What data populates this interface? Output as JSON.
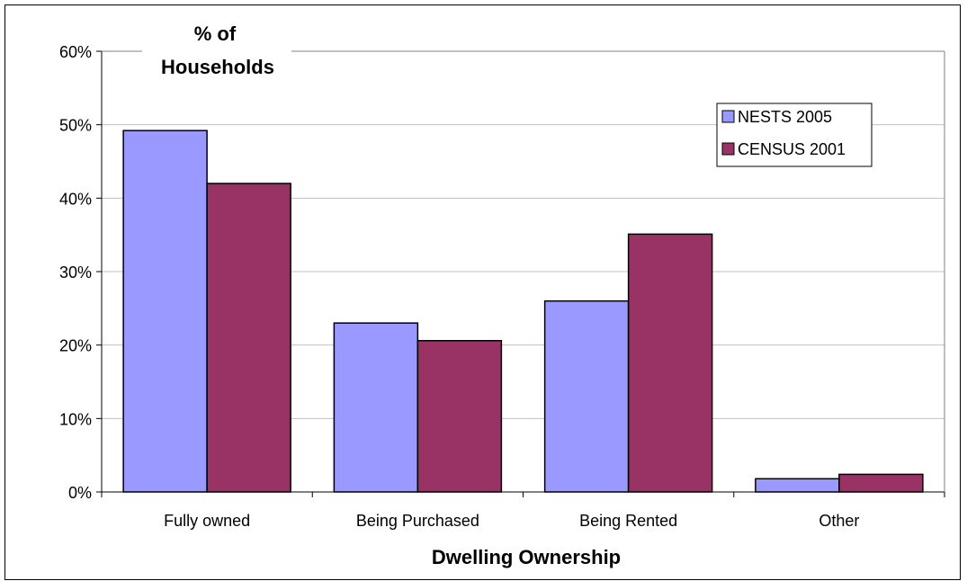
{
  "chart_data": {
    "type": "bar",
    "ylabel": "% of Households",
    "xlabel": "Dwelling Ownership",
    "categories": [
      "Fully owned",
      "Being Purchased",
      "Being Rented",
      "Other"
    ],
    "series": [
      {
        "name": "NESTS 2005",
        "values": [
          49.2,
          23.0,
          26.0,
          1.8
        ],
        "color": "#9999ff"
      },
      {
        "name": "CENSUS 2001",
        "values": [
          42.0,
          20.6,
          35.1,
          2.4
        ],
        "color": "#993366"
      }
    ],
    "ylim": [
      0,
      60
    ],
    "yticks": [
      "0%",
      "10%",
      "20%",
      "30%",
      "40%",
      "50%",
      "60%"
    ],
    "grid": true,
    "legend": "top-right"
  }
}
